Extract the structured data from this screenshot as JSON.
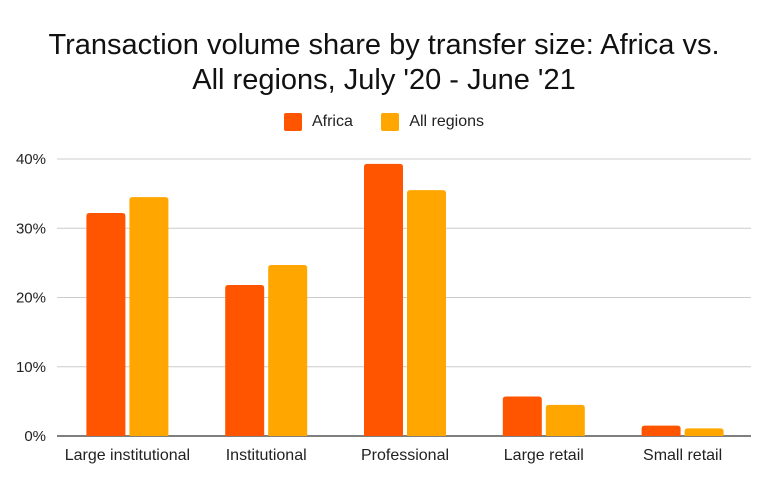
{
  "chart_data": {
    "type": "bar",
    "title": "Transaction volume share by transfer size: Africa vs. All regions, July '20 - June '21",
    "categories": [
      "Large institutional",
      "Institutional",
      "Professional",
      "Large retail",
      "Small retail"
    ],
    "series": [
      {
        "name": "Africa",
        "color": "#ff5500",
        "values": [
          32.2,
          21.8,
          39.3,
          5.7,
          1.5
        ]
      },
      {
        "name": "All regions",
        "color": "#ffa600",
        "values": [
          34.5,
          24.7,
          35.5,
          4.5,
          1.1
        ]
      }
    ],
    "ylim": [
      0,
      40
    ],
    "yticks": [
      "0%",
      "10%",
      "20%",
      "30%",
      "40%"
    ],
    "ytick_values": [
      0,
      10,
      20,
      30,
      40
    ],
    "grid": true,
    "legend_position": "top-center",
    "xlabel": "",
    "ylabel": ""
  }
}
